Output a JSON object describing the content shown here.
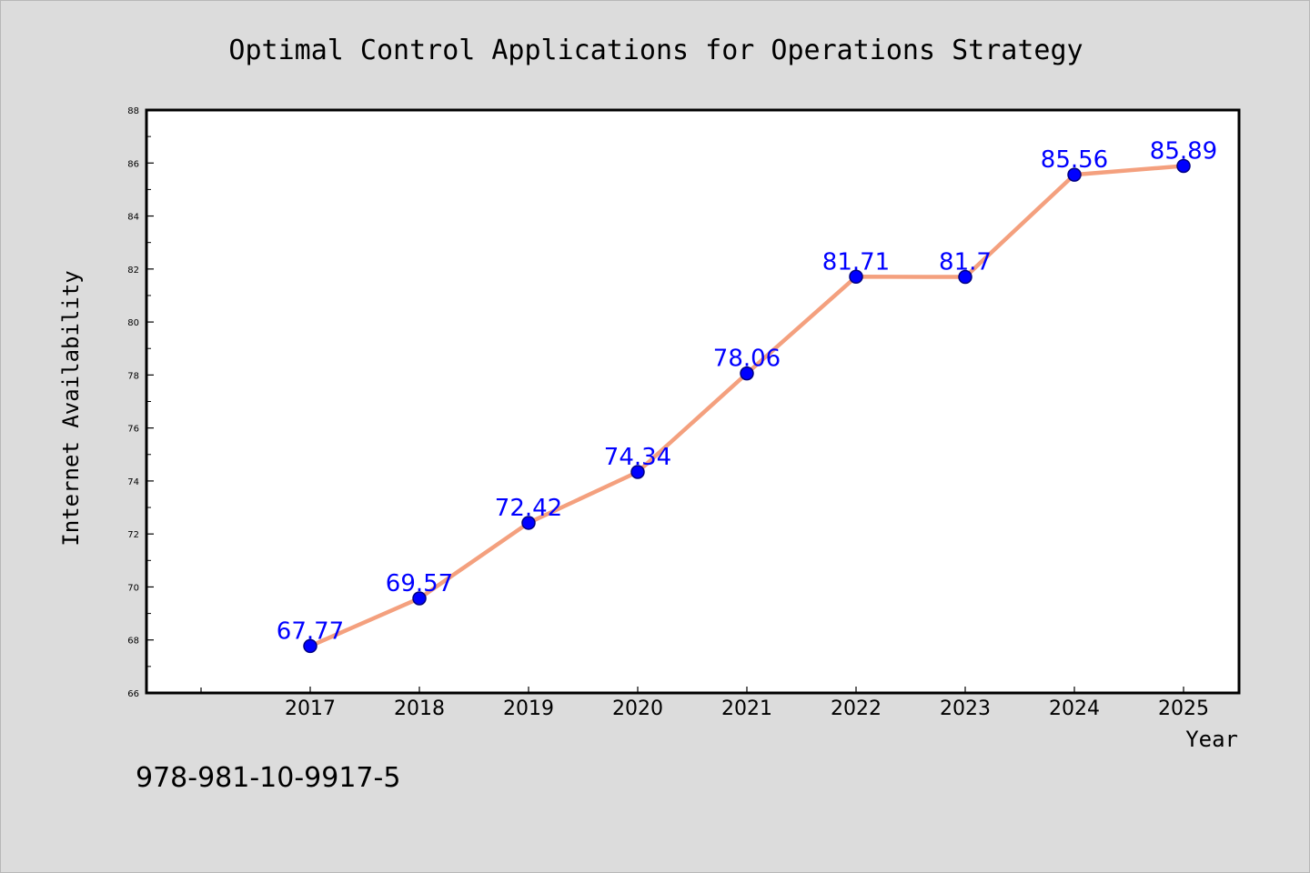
{
  "chart_data": {
    "type": "line",
    "title": "Optimal Control Applications for Operations Strategy",
    "xlabel": "Year",
    "ylabel": "Internet Availability",
    "categories": [
      "2017",
      "2018",
      "2019",
      "2020",
      "2021",
      "2022",
      "2023",
      "2024",
      "2025"
    ],
    "series": [
      {
        "values": [
          67.77,
          69.57,
          72.42,
          74.34,
          78.06,
          81.71,
          81.7,
          85.56,
          85.89
        ],
        "data_labels": [
          "67.77",
          "69.57",
          "72.42",
          "74.34",
          "78.06",
          "81.71",
          "81.7",
          "85.56",
          "85.89"
        ],
        "line_color": "#f4a07e",
        "marker_color": "#0000ff",
        "marker_edge_color": "#000080"
      }
    ],
    "ylim": [
      66,
      88
    ],
    "yticks": [
      "66",
      "68",
      "70",
      "72",
      "74",
      "76",
      "78",
      "80",
      "82",
      "84",
      "86",
      "88"
    ],
    "grid": false,
    "legend": "none",
    "label_color": "#0000ff"
  },
  "footer": {
    "isbn": "978-981-10-9917-5"
  }
}
